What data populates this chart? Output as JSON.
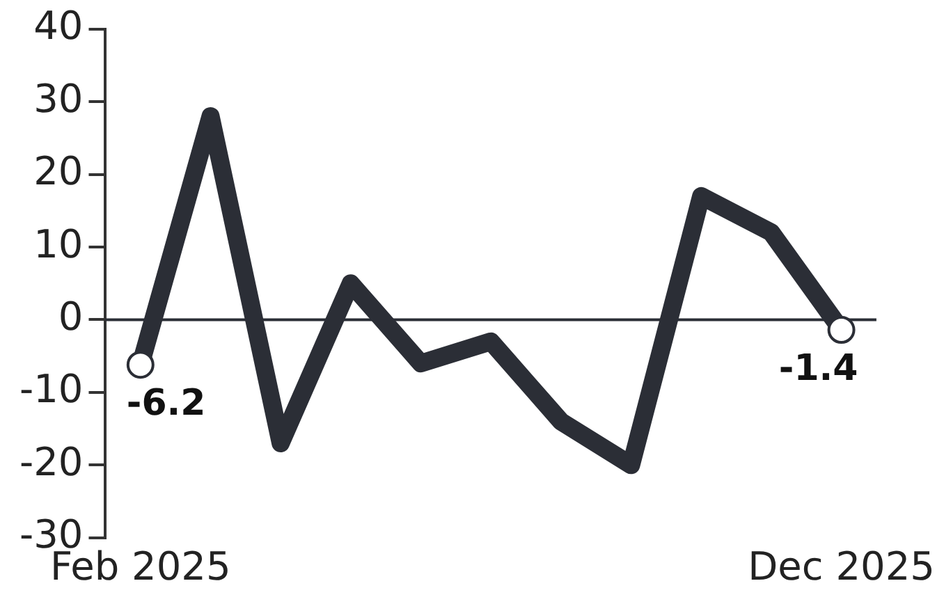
{
  "chart_data": {
    "type": "line",
    "categories": [
      "Feb 2025",
      null,
      null,
      null,
      null,
      null,
      null,
      null,
      null,
      null,
      "Dec 2025"
    ],
    "series": [
      {
        "color": "#2b2e36",
        "values": [
          -6.2,
          28,
          -17,
          5,
          -6,
          -3,
          -14,
          -20,
          17,
          12,
          -1.4
        ],
        "value_labels": [
          "-6.2",
          null,
          null,
          null,
          null,
          null,
          null,
          null,
          null,
          null,
          "-1.4"
        ]
      }
    ],
    "ylim": [
      -30,
      40
    ],
    "yticks": [
      -30,
      -20,
      -10,
      0,
      10,
      20,
      30,
      40
    ],
    "grid": false,
    "legend": false,
    "line_style": "solid",
    "ref_lines": [
      {
        "axis": "y",
        "value": 0,
        "color": "#2b2e36"
      }
    ]
  }
}
